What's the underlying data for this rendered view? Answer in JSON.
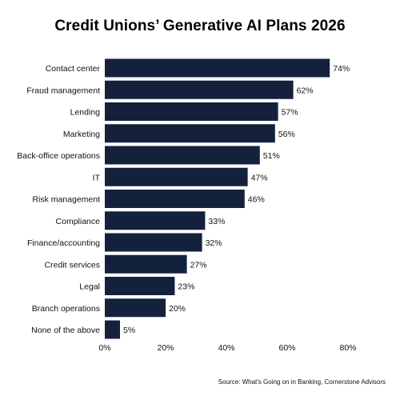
{
  "chart_data": {
    "type": "bar",
    "orientation": "horizontal",
    "title": "Credit Unions’ Generative AI Plans 2026",
    "categories": [
      "Contact center",
      "Fraud management",
      "Lending",
      "Marketing",
      "Back-office operations",
      "IT",
      "Risk management",
      "Compliance",
      "Finance/accounting",
      "Credit services",
      "Legal",
      "Branch operations",
      "None of the above"
    ],
    "values": [
      74,
      62,
      57,
      56,
      51,
      47,
      46,
      33,
      32,
      27,
      23,
      20,
      5
    ],
    "data_labels": [
      "74%",
      "62%",
      "57%",
      "56%",
      "51%",
      "47%",
      "46%",
      "33%",
      "32%",
      "27%",
      "23%",
      "20%",
      "5%"
    ],
    "xlim": [
      0,
      80
    ],
    "x_ticks": [
      0,
      20,
      40,
      60,
      80
    ],
    "x_tick_labels": [
      "0%",
      "20%",
      "40%",
      "60%",
      "80%"
    ],
    "xlabel": "",
    "ylabel": "",
    "grid": false,
    "bar_color": "#14213d"
  },
  "source": "Source: What's Going on in Banking, Cornerstone Advisors"
}
